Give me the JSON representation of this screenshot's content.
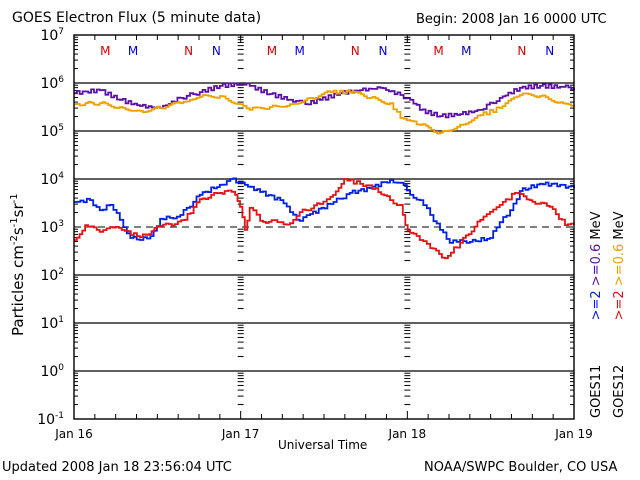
{
  "chart_data": {
    "type": "line",
    "title": "GOES Electron Flux (5 minute data)",
    "begin_label": "Begin: 2008 Jan 16 0000 UTC",
    "xlabel": "Universal Time",
    "ylabel": "Particles cm⁻²s⁻¹sr⁻¹",
    "ylabel_parts": [
      "Particles cm",
      "-2",
      "s",
      "-1",
      "sr",
      "-1"
    ],
    "yscale": "log",
    "ylim": [
      0.1,
      10000000
    ],
    "y_ticks": [
      {
        "base": "10",
        "exp": "7",
        "value": 10000000
      },
      {
        "base": "10",
        "exp": "6",
        "value": 1000000
      },
      {
        "base": "10",
        "exp": "5",
        "value": 100000
      },
      {
        "base": "10",
        "exp": "4",
        "value": 10000
      },
      {
        "base": "10",
        "exp": "3",
        "value": 1000
      },
      {
        "base": "10",
        "exp": "2",
        "value": 100
      },
      {
        "base": "10",
        "exp": "1",
        "value": 10
      },
      {
        "base": "10",
        "exp": "0",
        "value": 1
      },
      {
        "base": "10",
        "exp": "-1",
        "value": 0.1
      }
    ],
    "x_unit": "hours since 2008 Jan 16 0000 UTC",
    "xlim": [
      0,
      72
    ],
    "x_ticks": [
      {
        "label": "Jan 16",
        "value": 0
      },
      {
        "label": "Jan 17",
        "value": 24
      },
      {
        "label": "Jan 18",
        "value": 48
      },
      {
        "label": "Jan 19",
        "value": 72
      }
    ],
    "gridlines_y": [
      1000000,
      100000,
      10000,
      100,
      10,
      1
    ],
    "threshold_line": {
      "value": 1000,
      "style": "dashed"
    },
    "local_time_markers": [
      {
        "label": "M",
        "hour": 4.5,
        "color": "#e00000"
      },
      {
        "label": "M",
        "hour": 8.5,
        "color": "#0000e0"
      },
      {
        "label": "N",
        "hour": 16.5,
        "color": "#e00000"
      },
      {
        "label": "N",
        "hour": 20.5,
        "color": "#0000e0"
      },
      {
        "label": "M",
        "hour": 28.5,
        "color": "#e00000"
      },
      {
        "label": "M",
        "hour": 32.5,
        "color": "#0000e0"
      },
      {
        "label": "N",
        "hour": 40.5,
        "color": "#e00000"
      },
      {
        "label": "N",
        "hour": 44.5,
        "color": "#0000e0"
      },
      {
        "label": "M",
        "hour": 52.5,
        "color": "#e00000"
      },
      {
        "label": "M",
        "hour": 56.5,
        "color": "#0000e0"
      },
      {
        "label": "N",
        "hour": 64.5,
        "color": "#e00000"
      },
      {
        "label": "N",
        "hour": 68.5,
        "color": "#0000e0"
      }
    ],
    "series": [
      {
        "name": ">=0.6 MeV GOES11",
        "color": "#5a10a8",
        "x": [
          0,
          3.7,
          6.6,
          9.5,
          12.4,
          15.3,
          18.1,
          21.0,
          23.9,
          25.3,
          28.2,
          31.1,
          33.3,
          35.4,
          38.3,
          41.2,
          44.1,
          47.0,
          48.4,
          49.8,
          52.7,
          55.6,
          58.5,
          61.3,
          64.2,
          67.1,
          70.0,
          72
        ],
        "log10": [
          5.79,
          5.85,
          5.65,
          5.52,
          5.48,
          5.69,
          5.81,
          5.94,
          5.98,
          5.94,
          5.77,
          5.65,
          5.56,
          5.65,
          5.79,
          5.85,
          5.9,
          5.75,
          5.65,
          5.44,
          5.31,
          5.35,
          5.44,
          5.69,
          5.9,
          5.94,
          5.92,
          5.9
        ]
      },
      {
        "name": ">=0.6 MeV GOES12",
        "color": "#f0a000",
        "x": [
          0,
          3.7,
          6.6,
          9.5,
          12.4,
          15.3,
          18.1,
          21.0,
          23.9,
          25.3,
          28.2,
          31.1,
          34.0,
          36.9,
          39.7,
          42.6,
          45.5,
          47.0,
          48.4,
          49.8,
          52.7,
          55.6,
          58.5,
          61.3,
          64.2,
          67.1,
          70.0,
          72
        ],
        "log10": [
          5.56,
          5.58,
          5.5,
          5.42,
          5.48,
          5.58,
          5.71,
          5.73,
          5.56,
          5.44,
          5.5,
          5.56,
          5.69,
          5.81,
          5.81,
          5.69,
          5.58,
          5.27,
          5.21,
          5.13,
          4.96,
          5.13,
          5.33,
          5.48,
          5.75,
          5.73,
          5.6,
          5.52
        ]
      },
      {
        "name": ">=2 MeV GOES11",
        "color": "#0020e8",
        "x": [
          0,
          2.3,
          3.7,
          5.2,
          6.6,
          8.1,
          9.5,
          11.0,
          12.4,
          13.8,
          15.3,
          18.1,
          21.0,
          22.5,
          24.6,
          26.8,
          29.7,
          31.1,
          32.5,
          34.0,
          36.9,
          39.7,
          42.6,
          45.5,
          47.0,
          48.4,
          49.8,
          51.3,
          52.7,
          54.1,
          55.6,
          57.0,
          59.9,
          61.3,
          62.8,
          64.2,
          67.1,
          70.0,
          72
        ],
        "log10": [
          3.52,
          3.56,
          3.35,
          3.46,
          3.15,
          2.77,
          2.73,
          2.81,
          3.17,
          3.19,
          3.25,
          3.67,
          3.88,
          4.0,
          3.88,
          3.73,
          3.56,
          3.31,
          3.13,
          3.27,
          3.48,
          3.71,
          3.81,
          3.98,
          3.92,
          3.67,
          3.56,
          3.25,
          2.94,
          2.67,
          2.73,
          2.69,
          2.77,
          3.1,
          3.35,
          3.75,
          3.9,
          3.88,
          3.81
        ]
      },
      {
        "name": ">=2 MeV GOES12",
        "color": "#e81010",
        "x": [
          0,
          1.6,
          3.7,
          5.2,
          7.3,
          9.5,
          12.4,
          14.5,
          15.9,
          18.1,
          21.0,
          21.7,
          23.2,
          23.9,
          24.6,
          25.3,
          26.8,
          29.7,
          31.1,
          32.5,
          35.4,
          36.9,
          38.9,
          41.2,
          43.4,
          45.5,
          47.0,
          47.7,
          48.4,
          49.8,
          51.3,
          53.4,
          55.6,
          58.5,
          61.3,
          63.5,
          65.6,
          68.5,
          70.7,
          72
        ],
        "log10": [
          2.73,
          3.04,
          2.9,
          3.0,
          2.92,
          2.79,
          3.02,
          3.06,
          3.15,
          3.58,
          3.71,
          3.75,
          3.67,
          3.42,
          2.94,
          3.4,
          3.13,
          3.1,
          3.08,
          3.31,
          3.48,
          3.63,
          4.0,
          3.9,
          3.81,
          3.56,
          3.46,
          3.04,
          2.88,
          2.73,
          2.56,
          2.35,
          2.67,
          3.15,
          3.46,
          3.71,
          3.56,
          3.42,
          3.04,
          3.1
        ]
      }
    ],
    "legend": {
      "placement": "right",
      "columns": [
        {
          "satellite": "GOES11",
          "high_energy": ">=2",
          "high_color": "#0020e8",
          "low_energy": ">=0.6",
          "low_color": "#5a10a8",
          "unit": "MeV"
        },
        {
          "satellite": "GOES12",
          "high_energy": ">=2",
          "high_color": "#e81010",
          "low_energy": ">=0.6",
          "low_color": "#f0a000",
          "unit": "MeV"
        }
      ]
    }
  },
  "footer": {
    "updated": "Updated 2008 Jan 18 23:56:04 UTC",
    "credit": "NOAA/SWPC Boulder, CO USA"
  }
}
